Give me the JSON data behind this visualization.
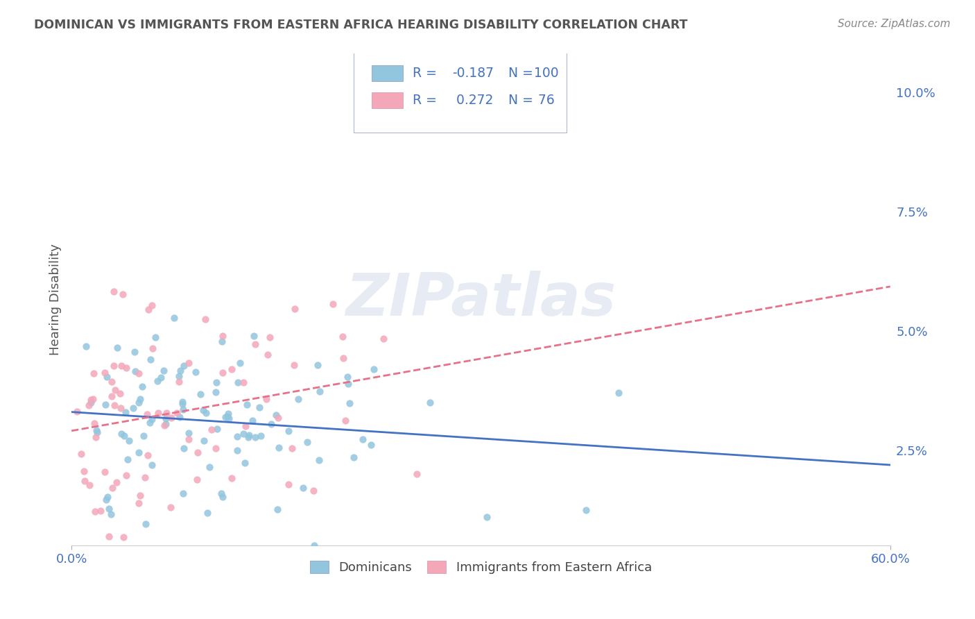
{
  "title": "DOMINICAN VS IMMIGRANTS FROM EASTERN AFRICA HEARING DISABILITY CORRELATION CHART",
  "source": "Source: ZipAtlas.com",
  "ylabel": "Hearing Disability",
  "watermark": "ZIPatlas",
  "legend_label_1": "Dominicans",
  "legend_label_2": "Immigrants from Eastern Africa",
  "R1": -0.187,
  "N1": 100,
  "R2": 0.272,
  "N2": 76,
  "color1": "#92c5de",
  "color2": "#f4a7b9",
  "line_color1": "#4472c4",
  "line_color2": "#e8718a",
  "xmin": 0.0,
  "xmax": 0.6,
  "ymin": 0.005,
  "ymax": 0.108,
  "yticks": [
    0.025,
    0.05,
    0.075,
    0.1
  ],
  "ytick_labels": [
    "2.5%",
    "5.0%",
    "7.5%",
    "10.0%"
  ],
  "xticks": [
    0.0,
    0.6
  ],
  "xtick_labels": [
    "0.0%",
    "60.0%"
  ],
  "background_color": "#ffffff",
  "grid_color": "#cccccc",
  "title_color": "#555555",
  "axis_color": "#4472c4",
  "legend_text_color": "#4472c4",
  "source_color": "#888888",
  "seed1": 42,
  "seed2": 99
}
